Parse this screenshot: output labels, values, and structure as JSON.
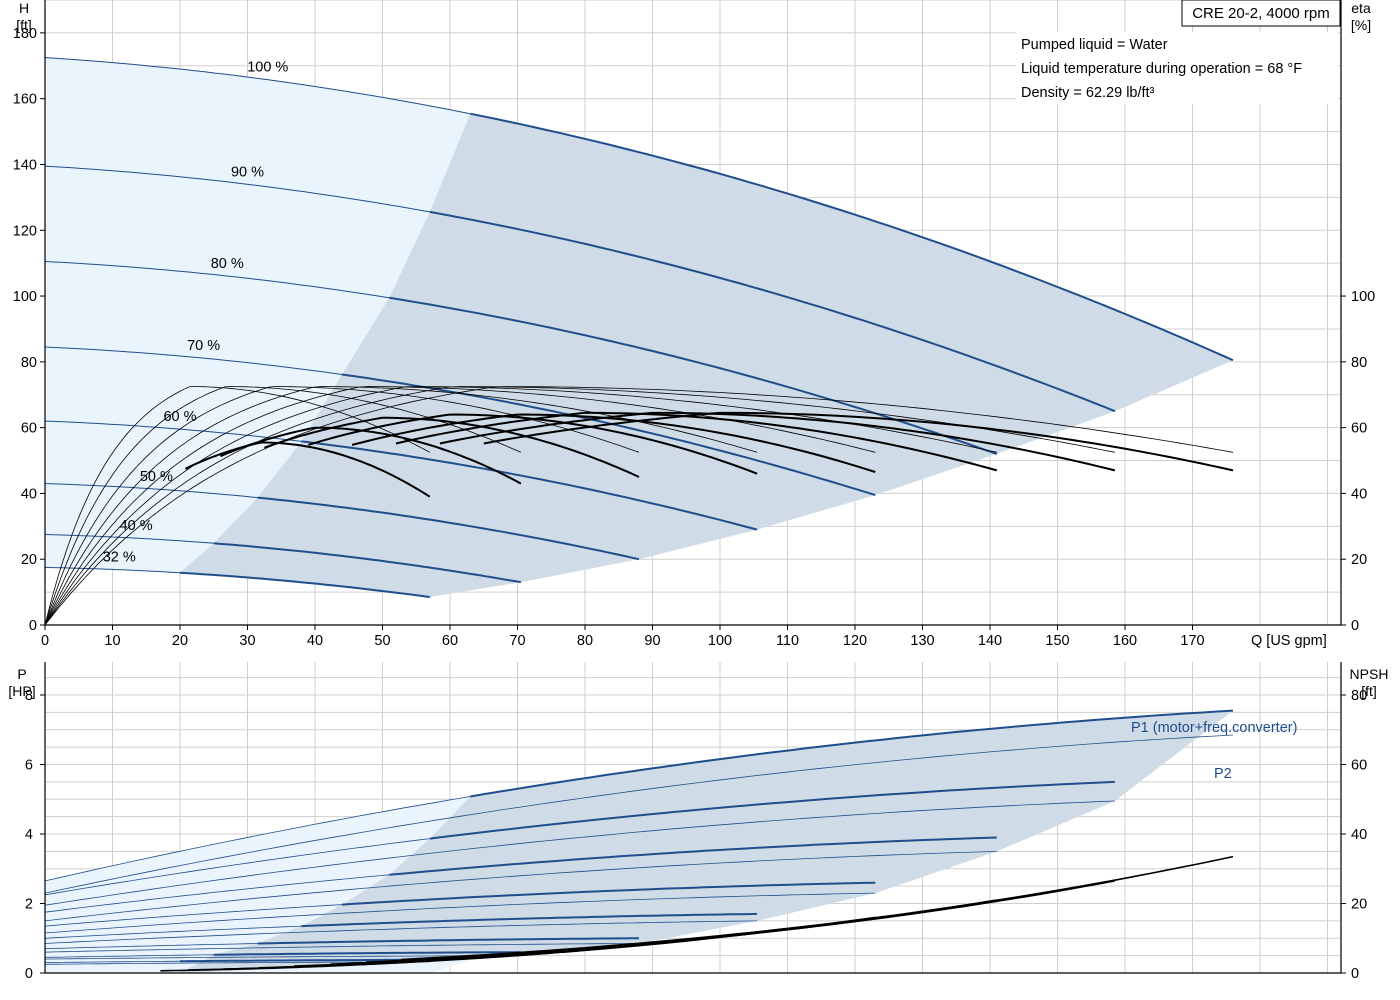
{
  "chart_data": [
    {
      "id": "head_efficiency",
      "type": "line",
      "title": "CRE 20-2, 4000 rpm",
      "info_lines": [
        "Pumped liquid = Water",
        "Liquid temperature during operation = 68 °F",
        "Density = 62.29 lb/ft³"
      ],
      "x_axis": {
        "label": "Q [US gpm]",
        "range": [
          0,
          192
        ],
        "ticks": [
          0,
          10,
          20,
          30,
          40,
          50,
          60,
          70,
          80,
          90,
          100,
          110,
          120,
          130,
          140,
          150,
          160,
          170
        ]
      },
      "y_left": {
        "label_top": "H",
        "label_unit": "[ft]",
        "range": [
          0,
          190
        ],
        "ticks": [
          0,
          20,
          40,
          60,
          80,
          100,
          120,
          140,
          160,
          180
        ]
      },
      "y_right": {
        "label_top": "eta",
        "label_unit": "[%]",
        "range": [
          0,
          190
        ],
        "ticks": [
          0,
          20,
          40,
          60,
          80,
          100
        ]
      },
      "grid": true,
      "head_curves": [
        {
          "label": "100 %",
          "h0": 172.5,
          "qmax": 176,
          "hend": 80.5,
          "q_op": 63
        },
        {
          "label": "90 %",
          "h0": 139.5,
          "qmax": 158.5,
          "hend": 65,
          "q_op": 57
        },
        {
          "label": "80 %",
          "h0": 110.5,
          "qmax": 141,
          "hend": 52,
          "q_op": 51
        },
        {
          "label": "70 %",
          "h0": 84.5,
          "qmax": 123,
          "hend": 39.5,
          "q_op": 44
        },
        {
          "label": "60 %",
          "h0": 62,
          "qmax": 105.5,
          "hend": 29,
          "q_op": 38
        },
        {
          "label": "50 %",
          "h0": 43,
          "qmax": 88,
          "hend": 20,
          "q_op": 31.5
        },
        {
          "label": "40 %",
          "h0": 27.5,
          "qmax": 70.5,
          "hend": 13,
          "q_op": 25
        },
        {
          "label": "32 %",
          "h0": 17.5,
          "qmax": 57,
          "hend": 8.5,
          "q_op": 20
        }
      ],
      "efficiency_curves": [
        {
          "qmax": 176,
          "bep_q": 100,
          "eta_peak": 64.5,
          "eta_end": 47,
          "thin_peak": 72.5,
          "thin_end": 52.5
        },
        {
          "qmax": 158.5,
          "bep_q": 90,
          "eta_peak": 64.5,
          "eta_end": 47,
          "thin_peak": 72.5,
          "thin_end": 52.5
        },
        {
          "qmax": 141,
          "bep_q": 80,
          "eta_peak": 64.5,
          "eta_end": 47,
          "thin_peak": 72.5,
          "thin_end": 52.5
        },
        {
          "qmax": 123,
          "bep_q": 70,
          "eta_peak": 64,
          "eta_end": 46.5,
          "thin_peak": 72.5,
          "thin_end": 52.5
        },
        {
          "qmax": 105.5,
          "bep_q": 60,
          "eta_peak": 64,
          "eta_end": 46,
          "thin_peak": 72.5,
          "thin_end": 52.5
        },
        {
          "qmax": 88,
          "bep_q": 50,
          "eta_peak": 63,
          "eta_end": 45,
          "thin_peak": 72.5,
          "thin_end": 52.5
        },
        {
          "qmax": 70.5,
          "bep_q": 40,
          "eta_peak": 60,
          "eta_end": 43,
          "thin_peak": 72.5,
          "thin_end": 52.5
        },
        {
          "qmax": 57,
          "bep_q": 32,
          "eta_peak": 55.5,
          "eta_end": 39,
          "thin_peak": 72.5,
          "thin_end": 52.5
        }
      ]
    },
    {
      "id": "power_npsh",
      "type": "line",
      "x_axis": {
        "range": [
          0,
          192
        ]
      },
      "y_left": {
        "label_top": "P",
        "label_unit": "[HP]",
        "range": [
          0,
          8.95
        ],
        "ticks": [
          0,
          2,
          4,
          6,
          8
        ]
      },
      "y_right": {
        "label_top": "NPSH",
        "label_unit": "[ft]",
        "range": [
          0,
          89.5
        ],
        "ticks": [
          0,
          20,
          40,
          60,
          80
        ]
      },
      "grid": true,
      "series_labels": {
        "p1": "P1 (motor+freq.converter)",
        "p2": "P2"
      },
      "power_curves": [
        {
          "qmax": 176,
          "p1_start": 2.65,
          "p1_end": 7.55,
          "p2_start": 2.3,
          "p2_end": 6.85,
          "q_op": 63
        },
        {
          "qmax": 158.5,
          "p1_start": 2.25,
          "p1_end": 5.5,
          "p2_start": 1.95,
          "p2_end": 4.95,
          "q_op": 57
        },
        {
          "qmax": 141,
          "p1_start": 1.75,
          "p1_end": 3.9,
          "p2_start": 1.5,
          "p2_end": 3.5,
          "q_op": 51
        },
        {
          "qmax": 123,
          "p1_start": 1.35,
          "p1_end": 2.6,
          "p2_start": 1.15,
          "p2_end": 2.3,
          "q_op": 44
        },
        {
          "qmax": 105.5,
          "p1_start": 1.0,
          "p1_end": 1.7,
          "p2_start": 0.85,
          "p2_end": 1.5,
          "q_op": 38
        },
        {
          "qmax": 88,
          "p1_start": 0.7,
          "p1_end": 1.0,
          "p2_start": 0.6,
          "p2_end": 0.85,
          "q_op": 31.5
        },
        {
          "qmax": 70.5,
          "p1_start": 0.45,
          "p1_end": 0.6,
          "p2_start": 0.4,
          "p2_end": 0.5,
          "q_op": 25
        },
        {
          "qmax": 57,
          "p1_start": 0.3,
          "p1_end": 0.38,
          "p2_start": 0.25,
          "p2_end": 0.32,
          "q_op": 20
        }
      ],
      "npsh_curves": [
        {
          "qmax": 176,
          "end": 33.5
        },
        {
          "qmax": 158.5,
          "end": 26.5
        },
        {
          "qmax": 141,
          "end": 21
        },
        {
          "qmax": 123,
          "end": 16
        },
        {
          "qmax": 105.5,
          "end": 11.5
        },
        {
          "qmax": 88,
          "end": 8
        },
        {
          "qmax": 70.5,
          "end": 5.5
        },
        {
          "qmax": 57,
          "end": 3.5
        }
      ]
    }
  ],
  "colors": {
    "grid": "#cfcfcf",
    "curve_blue": "#1f4e8c",
    "curve_black": "#000000",
    "light_fill": "#eaf4fd",
    "op_fill": "#cfdbe7",
    "axis": "#000000"
  }
}
